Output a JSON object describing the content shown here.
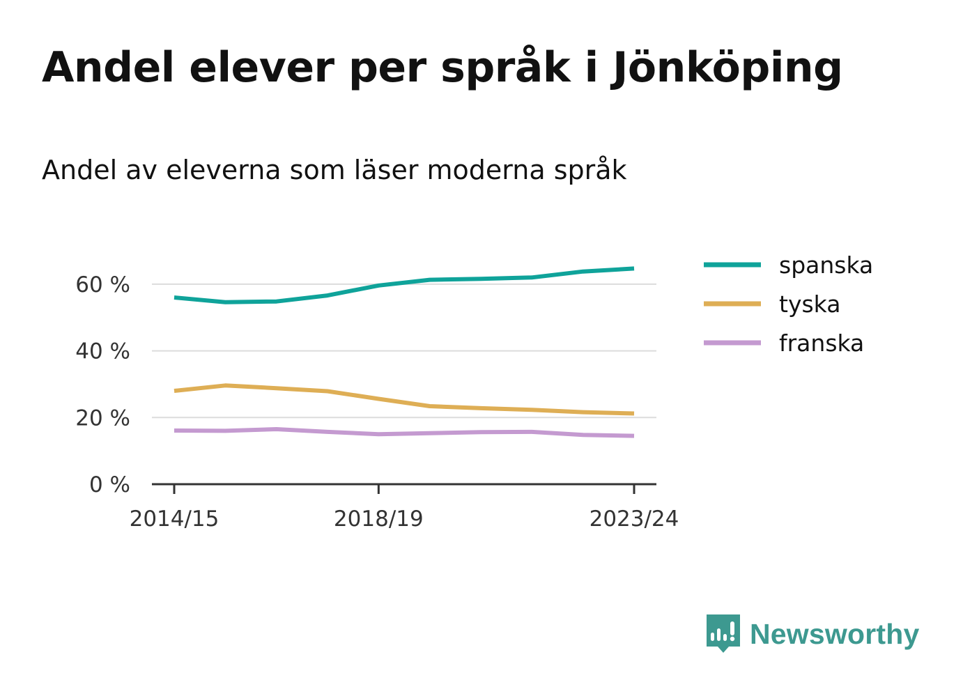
{
  "title": "Andel elever per språk i Jönköping",
  "subtitle": "Andel av eleverna som läser moderna språk",
  "brand": {
    "name": "Newsworthy",
    "color": "#3d9990"
  },
  "chart_data": {
    "type": "line",
    "x": [
      "2014/15",
      "2015/16",
      "2016/17",
      "2017/18",
      "2018/19",
      "2019/20",
      "2020/21",
      "2021/22",
      "2022/23",
      "2023/24"
    ],
    "x_tick_labels": [
      "2014/15",
      "2018/19",
      "2023/24"
    ],
    "y_ticks": [
      0,
      20,
      40,
      60
    ],
    "y_tick_labels": [
      "0 %",
      "20 %",
      "40 %",
      "60 %"
    ],
    "ylim": [
      0,
      70
    ],
    "grid": true,
    "legend_position": "right",
    "series": [
      {
        "name": "spanska",
        "color": "#0fa39a",
        "values": [
          56,
          54.6,
          54.8,
          56.6,
          59.6,
          61.3,
          61.6,
          62,
          63.8,
          64.7
        ]
      },
      {
        "name": "tyska",
        "color": "#deae55",
        "values": [
          28,
          29.6,
          28.8,
          27.9,
          25.6,
          23.4,
          22.8,
          22.3,
          21.6,
          21.2
        ]
      },
      {
        "name": "franska",
        "color": "#c49ad0",
        "values": [
          16.1,
          16,
          16.5,
          15.7,
          15,
          15.3,
          15.6,
          15.7,
          14.8,
          14.5
        ]
      }
    ]
  }
}
